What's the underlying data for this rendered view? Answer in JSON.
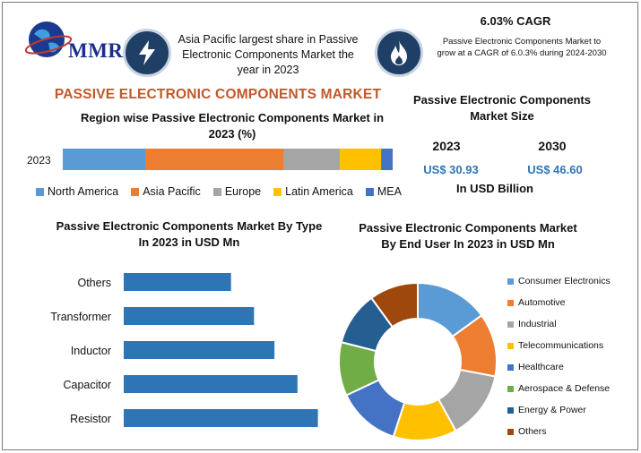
{
  "brand": {
    "logo_text": "MMR"
  },
  "header": {
    "info_text": "Asia Pacific largest share in Passive Electronic Components Market the year in 2023",
    "cagr_title": "6.03% CAGR",
    "cagr_text": "Passive Electronic Components Market to grow at a CAGR of 6.0.3% during 2024-2030",
    "icons": [
      "lightning-icon",
      "flame-icon"
    ]
  },
  "main_title": "PASSIVE ELECTRONIC COMPONENTS MARKET",
  "region_chart_title": "Region wise Passive Electronic Components Market in 2023 (%)",
  "market_size": {
    "title": "Passive Electronic Components Market Size",
    "year_a": "2023",
    "year_b": "2030",
    "value_a": "US$ 30.93",
    "value_b": "US$ 46.60",
    "unit": "In USD Billion"
  },
  "type_chart_title": "Passive Electronic Components Market By Type In 2023 in USD Mn",
  "enduser_chart_title": "Passive Electronic Components Market By End User In 2023 in USD Mn",
  "colors": {
    "accent_title": "#c0582b",
    "value_blue": "#2e75b6",
    "bar_blue": "#2e75b6",
    "icon_circle": "#1f3f66"
  },
  "chart_data": [
    {
      "type": "bar",
      "orientation": "horizontal-stacked",
      "categories": [
        "2023"
      ],
      "series": [
        {
          "name": "North America",
          "values": [
            25
          ],
          "color": "#5b9bd5"
        },
        {
          "name": "Asia Pacific",
          "values": [
            42
          ],
          "color": "#ed7d31"
        },
        {
          "name": "Europe",
          "values": [
            17
          ],
          "color": "#a5a5a5"
        },
        {
          "name": "Latin America",
          "values": [
            12.5
          ],
          "color": "#ffc000"
        },
        {
          "name": "MEA",
          "values": [
            3.5
          ],
          "color": "#4472c4"
        }
      ],
      "xlim": [
        0,
        100
      ],
      "grid": false,
      "legend": "bottom"
    },
    {
      "type": "bar",
      "orientation": "horizontal",
      "categories": [
        "Others",
        "Transformer",
        "Inductor",
        "Capacitor",
        "Resistor"
      ],
      "values": [
        4.2,
        5.1,
        5.9,
        6.8,
        7.6
      ],
      "xlim": [
        0,
        8
      ],
      "grid": false,
      "color": "#2e75b6"
    },
    {
      "type": "pie",
      "style": "donut",
      "categories": [
        "Consumer Electronics",
        "Automotive",
        "Industrial",
        "Telecommunications",
        "Healthcare",
        "Aerospace & Defense",
        "Energy & Power",
        "Others"
      ],
      "values": [
        15,
        13,
        14,
        13,
        13,
        11,
        11,
        10
      ],
      "colors": [
        "#5b9bd5",
        "#ed7d31",
        "#a5a5a5",
        "#ffc000",
        "#4472c4",
        "#70ad47",
        "#255e91",
        "#9e480e"
      ],
      "legend": "right"
    }
  ]
}
